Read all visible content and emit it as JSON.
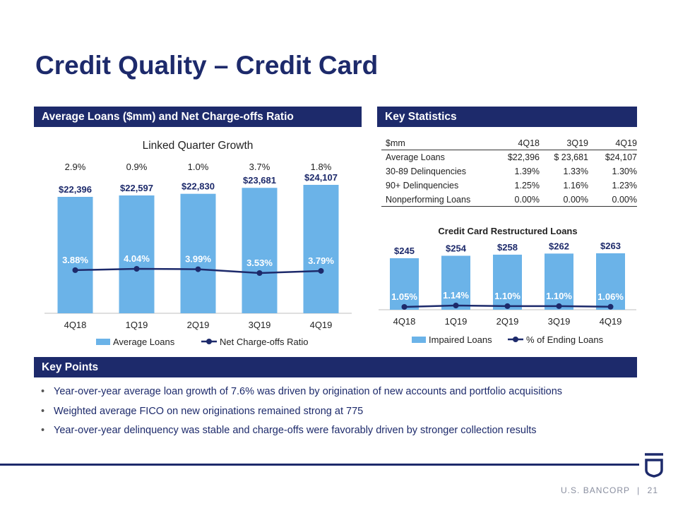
{
  "slide": {
    "title": "Credit Quality – Credit Card",
    "page_number": "21",
    "brand": "U.S. BANCORP",
    "separator": "|"
  },
  "sections": {
    "left": "Average Loans ($mm) and Net Charge-offs Ratio",
    "right": "Key Statistics",
    "bottom": "Key Points"
  },
  "colors": {
    "navy": "#1d2a6b",
    "bar": "#6bb3e8",
    "line": "#1d2a6b"
  },
  "chart_data": [
    {
      "type": "bar",
      "subtitle": "Linked Quarter Growth",
      "categories": [
        "4Q18",
        "1Q19",
        "2Q19",
        "3Q19",
        "4Q19"
      ],
      "growth_labels": [
        "2.9%",
        "0.9%",
        "1.0%",
        "3.7%",
        "1.8%"
      ],
      "series": [
        {
          "name": "Average Loans",
          "type": "bar",
          "values": [
            22396,
            22597,
            22830,
            23681,
            24107
          ],
          "labels": [
            "$22,396",
            "$22,597",
            "$22,830",
            "$23,681",
            "$24,107"
          ]
        },
        {
          "name": "Net Charge-offs Ratio",
          "type": "line",
          "values": [
            3.88,
            4.04,
            3.99,
            3.53,
            3.79
          ],
          "labels": [
            "3.88%",
            "4.04%",
            "3.99%",
            "3.53%",
            "3.79%"
          ]
        }
      ],
      "legend": "bottom"
    },
    {
      "type": "bar",
      "title": "Credit Card Restructured Loans",
      "categories": [
        "4Q18",
        "1Q19",
        "2Q19",
        "3Q19",
        "4Q19"
      ],
      "series": [
        {
          "name": "Impaired Loans",
          "type": "bar",
          "values": [
            245,
            254,
            258,
            262,
            263
          ],
          "labels": [
            "$245",
            "$254",
            "$258",
            "$262",
            "$263"
          ]
        },
        {
          "name": "% of Ending Loans",
          "type": "line",
          "values": [
            1.05,
            1.14,
            1.1,
            1.1,
            1.06
          ],
          "labels": [
            "1.05%",
            "1.14%",
            "1.10%",
            "1.10%",
            "1.06%"
          ]
        }
      ],
      "legend": "bottom"
    }
  ],
  "stats_table": {
    "headers": [
      "$mm",
      "4Q18",
      "3Q19",
      "4Q19"
    ],
    "rows": [
      [
        "Average Loans",
        "$22,396",
        "$ 23,681",
        "$24,107"
      ],
      [
        "30-89 Delinquencies",
        "1.39%",
        "1.33%",
        "1.30%"
      ],
      [
        "90+ Delinquencies",
        "1.25%",
        "1.16%",
        "1.23%"
      ],
      [
        "Nonperforming Loans",
        "0.00%",
        "0.00%",
        "0.00%"
      ]
    ]
  },
  "key_points": [
    "Year-over-year average loan growth of 7.6% was driven by origination of new accounts and portfolio acquisitions",
    "Weighted average FICO on new originations remained strong at 775",
    "Year-over-year delinquency was stable and charge-offs were favorably driven by stronger collection results"
  ]
}
